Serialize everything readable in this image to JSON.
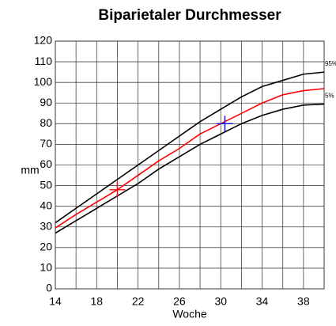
{
  "chart_data": {
    "type": "line",
    "title": "Biparietaler Durchmesser",
    "xlabel": "Woche",
    "ylabel": "mm",
    "x": [
      14,
      16,
      18,
      20,
      22,
      24,
      26,
      28,
      30,
      32,
      34,
      36,
      38,
      40
    ],
    "series": [
      {
        "name": "95%",
        "color": "#000000",
        "values": [
          32,
          39,
          46,
          53,
          60,
          67,
          74,
          81,
          87,
          93,
          98,
          101,
          104,
          105
        ]
      },
      {
        "color": "#ff0000",
        "values": [
          29.5,
          36,
          42,
          48,
          55,
          62,
          68,
          75,
          80,
          85,
          90,
          94,
          96,
          97
        ]
      },
      {
        "name": "5%",
        "color": "#000000",
        "values": [
          27,
          33,
          39,
          45,
          51,
          58,
          64,
          70,
          75,
          80,
          84,
          87,
          89,
          89.5
        ]
      }
    ],
    "points": [
      {
        "x": 20,
        "y": 48,
        "color": "#ff0000"
      },
      {
        "x": 30.4,
        "y": 80,
        "color": "#0000ff"
      }
    ],
    "xlim": [
      14,
      40
    ],
    "xticks": [
      14,
      18,
      22,
      26,
      30,
      34,
      38
    ],
    "xminor_ticks": [
      16,
      20,
      24,
      28,
      32,
      36,
      40
    ],
    "ylim": [
      0,
      120
    ],
    "yticks": [
      0,
      10,
      20,
      30,
      40,
      50,
      60,
      70,
      80,
      90,
      100,
      110,
      120
    ],
    "grid": true
  }
}
